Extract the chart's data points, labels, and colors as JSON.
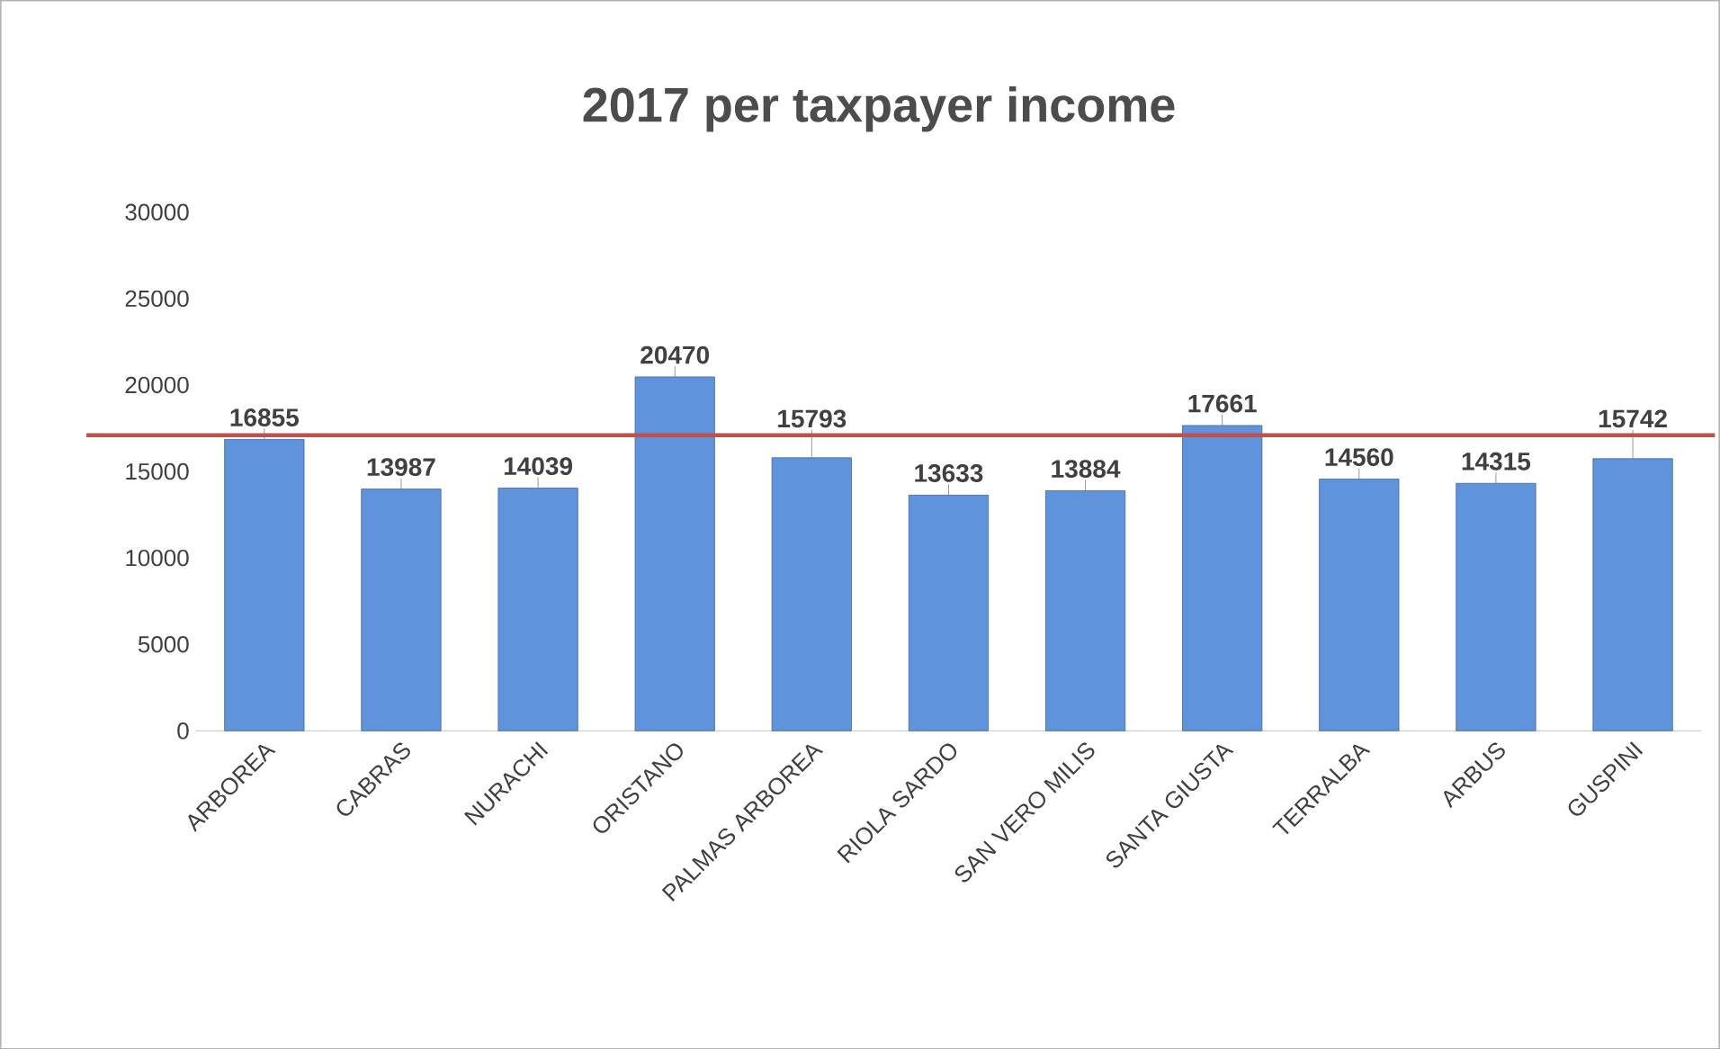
{
  "chart_data": {
    "type": "bar",
    "title": "2017 per taxpayer income",
    "categories": [
      "ARBOREA",
      "CABRAS",
      "NURACHI",
      "ORISTANO",
      "PALMAS ARBOREA",
      "RIOLA SARDO",
      "SAN VERO MILIS",
      "SANTA GIUSTA",
      "TERRALBA",
      "ARBUS",
      "GUSPINI"
    ],
    "values": [
      16855,
      13987,
      14039,
      20470,
      15793,
      13633,
      13884,
      17661,
      14560,
      14315,
      15742
    ],
    "color": "#5f93db",
    "ylim": [
      0,
      30000
    ],
    "yticks": [
      0,
      5000,
      10000,
      15000,
      20000,
      25000,
      30000
    ],
    "data_labels": true,
    "ref_lines": [
      {
        "axis": "y",
        "value": 17100,
        "color": "#c0504d"
      }
    ]
  }
}
